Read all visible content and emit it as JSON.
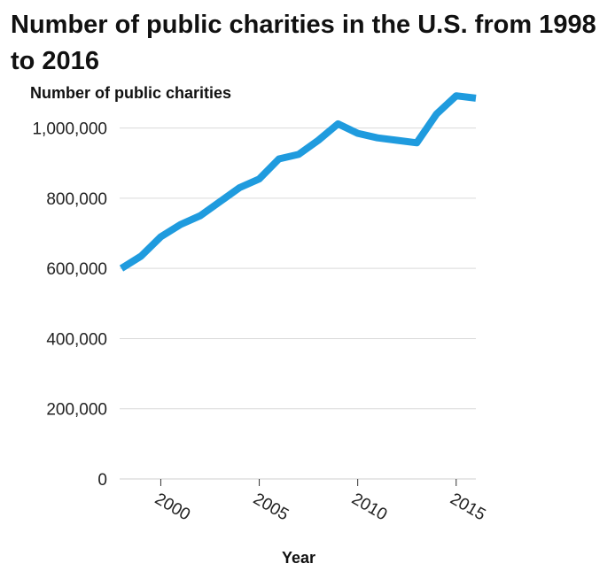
{
  "chart_data": {
    "type": "line",
    "title": "Number of public charities in the U.S. from 1998 to 2016",
    "ylabel": "Number of public charities",
    "xlabel": "Year",
    "x": [
      1998,
      1999,
      2000,
      2001,
      2002,
      2003,
      2004,
      2005,
      2006,
      2007,
      2008,
      2009,
      2010,
      2011,
      2012,
      2013,
      2014,
      2015,
      2016
    ],
    "series": [
      {
        "values": [
          600000,
          635000,
          690000,
          725000,
          750000,
          790000,
          830000,
          855000,
          912000,
          925000,
          965000,
          1012000,
          985000,
          972000,
          965000,
          958000,
          1040000,
          1092000,
          1085000
        ]
      }
    ],
    "xlim": [
      1998,
      2016
    ],
    "ylim": [
      0,
      1100000
    ],
    "xticks": [
      2000,
      2005,
      2010,
      2015
    ],
    "xtick_labels": [
      "2000",
      "2005",
      "2010",
      "2015"
    ],
    "yticks": [
      0,
      200000,
      400000,
      600000,
      800000,
      1000000
    ],
    "ytick_labels": [
      "0",
      "200,000",
      "400,000",
      "600,000",
      "800,000",
      "1,000,000"
    ],
    "grid": "horizontal",
    "line_color": "#1f9bde"
  }
}
